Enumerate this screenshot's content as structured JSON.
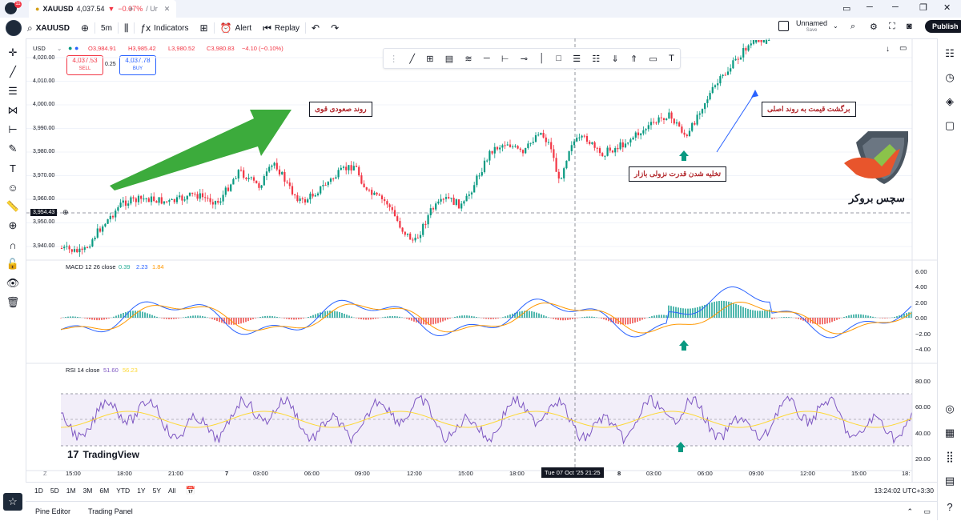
{
  "tab": {
    "symbol": "XAUUSD",
    "price": "4,037.54",
    "change": "−0.07%",
    "suffix": "/ Ur"
  },
  "avatar_badge": "11",
  "toolbar": {
    "symbol": "XAUUSD",
    "interval": "5m",
    "indicators": "Indicators",
    "alert": "Alert",
    "replay": "Replay",
    "layout_name": "Unnamed",
    "layout_status": "Save",
    "publish": "Publish"
  },
  "legend": {
    "currency": "USD",
    "ohlc_o": "O3,984.91",
    "ohlc_h": "H3,985.42",
    "ohlc_l": "L3,980.52",
    "ohlc_c": "C3,980.83",
    "ohlc_chg": "−4.10 (−0.10%)",
    "sell_price": "4,037.53",
    "sell_label": "SELL",
    "spread": "0.25",
    "buy_price": "4,037.78",
    "buy_label": "BUY"
  },
  "price_axis": [
    "4,020.00",
    "4,010.00",
    "4,000.00",
    "3,990.00",
    "3,980.00",
    "3,970.00",
    "3,960.00",
    "3,950.00",
    "3,940.00"
  ],
  "crosshair_price": "3,954.43",
  "macd": {
    "label": "MACD 12 26 close",
    "v1": "0.39",
    "v2": "2.23",
    "v3": "1.84",
    "axis": [
      "6.00",
      "4.00",
      "2.00",
      "0.00",
      "−2.00",
      "−4.00"
    ]
  },
  "rsi": {
    "label": "RSI 14 close",
    "v1": "51.60",
    "v2": "56.23",
    "axis": [
      "80.00",
      "60.00",
      "40.00",
      "20.00"
    ]
  },
  "annotations": {
    "strong_uptrend": "روند صعودی قوی",
    "return_main": "برگشت قیمت به روند اصلی",
    "weak_bear": "تخلیه شدن قدرت نزولی بازار"
  },
  "brand": {
    "logo_text": "سچس بروکر",
    "tradingview": "TradingView"
  },
  "time_axis": [
    "15:00",
    "18:00",
    "21:00",
    "7",
    "03:00",
    "06:00",
    "09:00",
    "12:00",
    "15:00",
    "18:00",
    "Tue 07 Oct '25  21:25",
    "8",
    "03:00",
    "06:00",
    "09:00",
    "12:00",
    "15:00",
    "18:"
  ],
  "timeframes": [
    "1D",
    "5D",
    "1M",
    "3M",
    "6M",
    "YTD",
    "1Y",
    "5Y",
    "All"
  ],
  "clock": "13:24:02 UTC+3:30",
  "bottom": {
    "pine": "Pine Editor",
    "trading": "Trading Panel"
  },
  "colors": {
    "up": "#089981",
    "down": "#f23645",
    "arrow": "#3cab3c",
    "macd": "#2962ff",
    "signal": "#ff9800",
    "rsi": "#7e57c2",
    "rsi_ma": "#fdd835"
  }
}
